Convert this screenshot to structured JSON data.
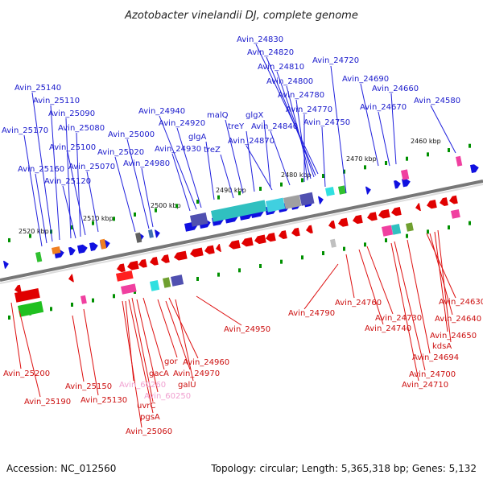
{
  "title": "Azotobacter vinelandii DJ, complete genome",
  "footer": {
    "accession": "Accession: NC_012560",
    "summary": "Topology: circular; Length: 5,365,318 bp; Genes: 5,132"
  },
  "colors": {
    "forward": "#1010e0",
    "reverse": "#e00000",
    "pseudo": "#f0a0d0",
    "axis": "#777777",
    "tick": "#009000"
  },
  "kbp_labels": [
    "2460 kbp",
    "2470 kbp",
    "2480 kbp",
    "2490 kbp",
    "2500 kbp",
    "2510 kbp",
    "2520 kbp"
  ],
  "top_labels": [
    "Avin_24830",
    "Avin_24820",
    "Avin_24810",
    "Avin_24720",
    "Avin_24800",
    "Avin_24690",
    "Avin_24660",
    "Avin_24780",
    "Avin_24580",
    "Avin_24670",
    "Avin_24770",
    "Avin_24750",
    "Avin_24840",
    "Avin_24870",
    "Avin_25140",
    "Avin_25110",
    "Avin_25090",
    "Avin_25080",
    "Avin_25170",
    "Avin_25100",
    "Avin_25160",
    "Avin_25070",
    "Avin_25120",
    "Avin_25000",
    "Avin_25020",
    "Avin_24980",
    "Avin_24940",
    "Avin_24920",
    "Avin_24930",
    "malQ",
    "glgX",
    "treY",
    "glgA",
    "treZ"
  ],
  "bottom_labels": [
    "Avin_24950",
    "Avin_24790",
    "Avin_24760",
    "Avin_24730",
    "Avin_24740",
    "Avin_24630",
    "Avin_24640",
    "Avin_24650",
    "kdsA",
    "Avin_24694",
    "Avin_24700",
    "Avin_24710",
    "Avin_25200",
    "Avin_25190",
    "Avin_25150",
    "Avin_25130",
    "gor",
    "Avin_24960",
    "gacA",
    "Avin_24970",
    "Avin_60260",
    "galU",
    "Avin_60250",
    "uvrC",
    "pgsA",
    "Avin_25060"
  ]
}
